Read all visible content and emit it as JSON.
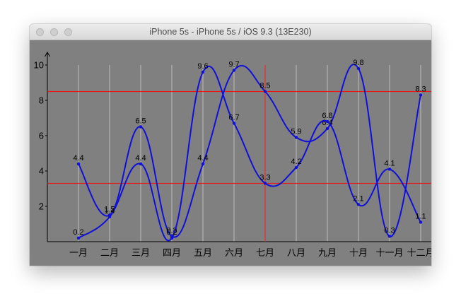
{
  "window": {
    "title": "iPhone 5s - iPhone 5s / iOS 9.3 (13E230)"
  },
  "colors": {
    "background": "#808080",
    "series": "#1010d8",
    "limit_line": "#e01e1e",
    "grid": "#a8a8a8",
    "axis": "#000000"
  },
  "chart_data": {
    "type": "line",
    "categories": [
      "一月",
      "二月",
      "三月",
      "四月",
      "五月",
      "六月",
      "七月",
      "八月",
      "九月",
      "十月",
      "十一月",
      "十二月"
    ],
    "series": [
      {
        "values": [
          4.4,
          1.5,
          6.5,
          0.3,
          4.4,
          9.7,
          8.5,
          5.9,
          6.4,
          9.8,
          0.3,
          8.3
        ]
      },
      {
        "values": [
          0.2,
          1.4,
          4.4,
          0.2,
          9.6,
          6.7,
          3.3,
          4.2,
          6.8,
          2.1,
          4.1,
          1.1
        ]
      }
    ],
    "y_ticks": [
      2,
      4,
      6,
      8,
      10
    ],
    "ylim": [
      0,
      10.6
    ],
    "limit_lines_y": [
      8.5,
      3.3
    ],
    "highlight_x": "七月",
    "grid": "vertical",
    "smooth": true
  }
}
